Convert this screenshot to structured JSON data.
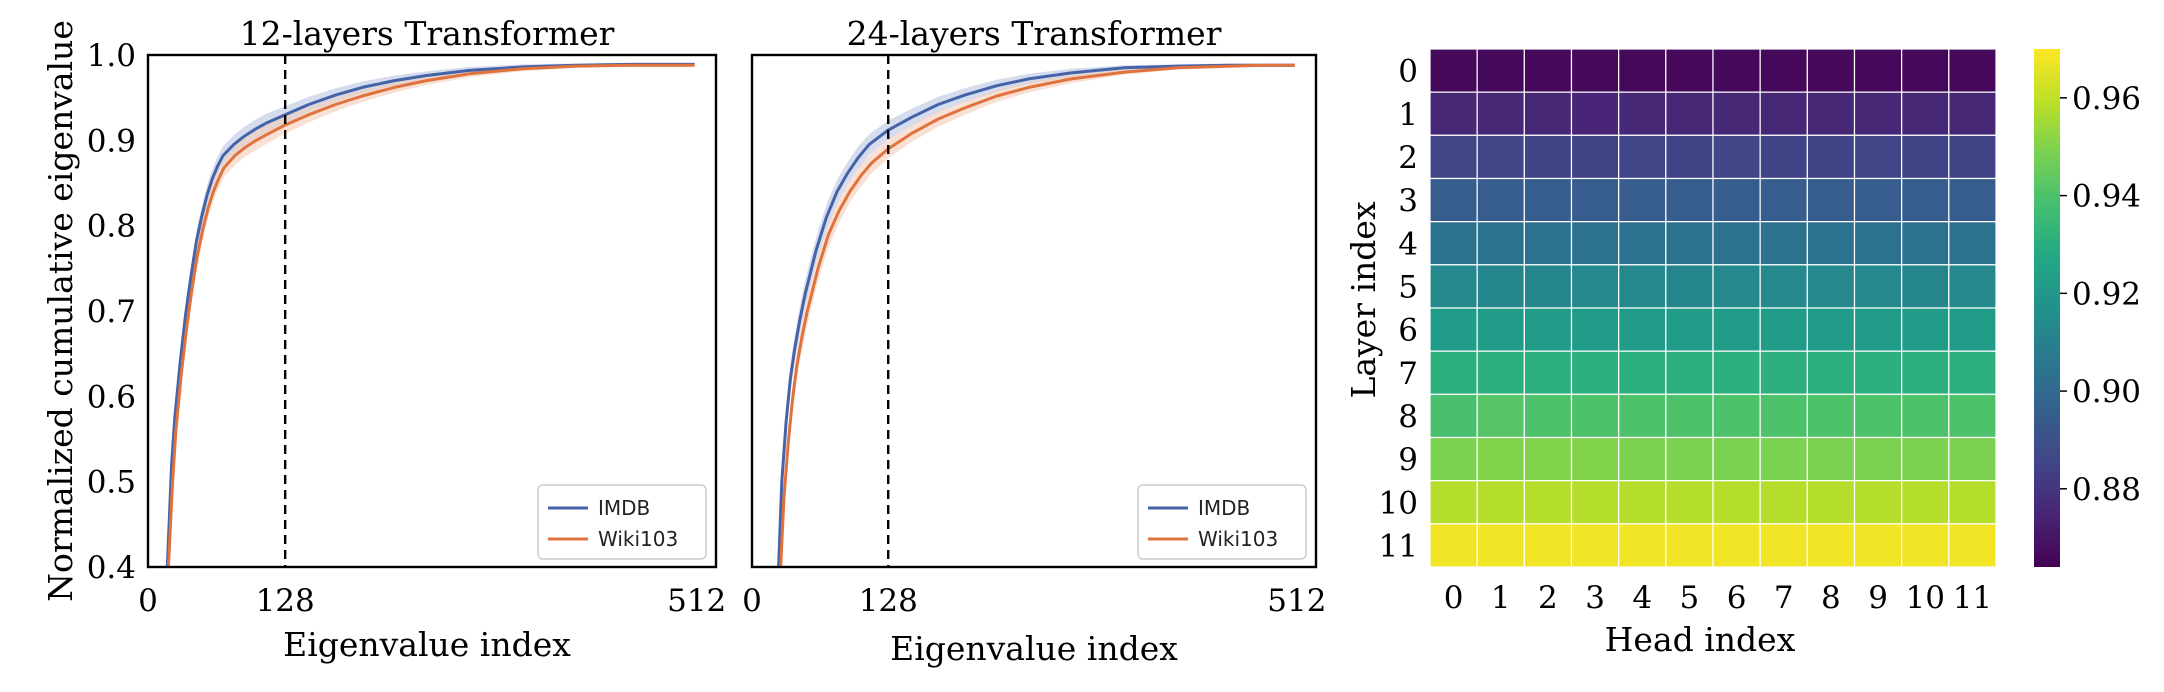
{
  "chart_data": [
    {
      "type": "line",
      "title": "12-layers Transformer",
      "xlabel": "Eigenvalue index",
      "ylabel": "Normalized cumulative eigenvalue",
      "xlim": [
        0,
        530
      ],
      "ylim": [
        0.4,
        1.0
      ],
      "x_ticks": [
        0,
        128,
        512
      ],
      "y_ticks": [
        0.4,
        0.5,
        0.6,
        0.7,
        0.8,
        0.9,
        1.0
      ],
      "x_tick_labels": [
        "0",
        "128",
        "512"
      ],
      "y_tick_labels": [
        "0.4",
        "0.5",
        "0.6",
        "0.7",
        "0.8",
        "0.9",
        "1.0"
      ],
      "vline": 128,
      "vline_style": "dashed",
      "grid": false,
      "legend_position": "lower-right",
      "series": [
        {
          "name": "IMDB",
          "color": "#4463a8",
          "band_color": "#b9c5e1",
          "x": [
            18,
            22,
            25,
            30,
            35,
            40,
            45,
            50,
            55,
            60,
            65,
            70,
            80,
            90,
            100,
            110,
            128,
            150,
            175,
            200,
            230,
            260,
            300,
            350,
            400,
            450,
            480,
            510
          ],
          "y": [
            0.4,
            0.52,
            0.575,
            0.64,
            0.695,
            0.74,
            0.78,
            0.81,
            0.835,
            0.855,
            0.87,
            0.882,
            0.895,
            0.905,
            0.913,
            0.92,
            0.93,
            0.942,
            0.953,
            0.962,
            0.97,
            0.976,
            0.982,
            0.986,
            0.988,
            0.989,
            0.989,
            0.989
          ],
          "band_halfwidth": [
            0.012,
            0.015,
            0.015,
            0.015,
            0.014,
            0.013,
            0.013,
            0.012,
            0.012,
            0.011,
            0.011,
            0.011,
            0.011,
            0.011,
            0.011,
            0.011,
            0.01,
            0.009,
            0.008,
            0.007,
            0.006,
            0.005,
            0.004,
            0.003,
            0.002,
            0.002,
            0.002,
            0.002
          ]
        },
        {
          "name": "Wiki103",
          "color": "#e0723d",
          "band_color": "#f4cdb8",
          "x": [
            19,
            23,
            26,
            31,
            36,
            41,
            46,
            51,
            56,
            61,
            66,
            71,
            81,
            91,
            101,
            111,
            128,
            150,
            175,
            200,
            230,
            260,
            300,
            350,
            400,
            450,
            480,
            510
          ],
          "y": [
            0.4,
            0.5,
            0.56,
            0.625,
            0.68,
            0.725,
            0.765,
            0.795,
            0.82,
            0.84,
            0.855,
            0.868,
            0.882,
            0.892,
            0.9,
            0.907,
            0.918,
            0.93,
            0.942,
            0.952,
            0.962,
            0.97,
            0.978,
            0.984,
            0.987,
            0.988,
            0.988,
            0.988
          ],
          "band_halfwidth": [
            0.012,
            0.015,
            0.015,
            0.015,
            0.014,
            0.013,
            0.013,
            0.012,
            0.012,
            0.011,
            0.011,
            0.011,
            0.011,
            0.011,
            0.011,
            0.011,
            0.01,
            0.009,
            0.008,
            0.007,
            0.006,
            0.005,
            0.004,
            0.003,
            0.002,
            0.002,
            0.002,
            0.002
          ]
        }
      ]
    },
    {
      "type": "line",
      "title": "24-layers Transformer",
      "xlabel": "Eigenvalue index",
      "ylabel": "",
      "xlim": [
        0,
        530
      ],
      "ylim": [
        0.4,
        1.0
      ],
      "x_ticks": [
        0,
        128,
        512
      ],
      "x_tick_labels": [
        "0",
        "128",
        "512"
      ],
      "vline": 128,
      "vline_style": "dashed",
      "grid": false,
      "legend_position": "lower-right",
      "series": [
        {
          "name": "IMDB",
          "color": "#4463a8",
          "band_color": "#b9c5e1",
          "x": [
            25,
            28,
            32,
            36,
            40,
            45,
            50,
            55,
            60,
            70,
            80,
            90,
            100,
            110,
            128,
            150,
            175,
            200,
            230,
            260,
            300,
            350,
            400,
            450,
            480,
            510
          ],
          "y": [
            0.4,
            0.5,
            0.57,
            0.62,
            0.655,
            0.69,
            0.72,
            0.745,
            0.77,
            0.81,
            0.84,
            0.862,
            0.88,
            0.895,
            0.912,
            0.927,
            0.942,
            0.953,
            0.964,
            0.972,
            0.979,
            0.985,
            0.987,
            0.988,
            0.988,
            0.988
          ],
          "band_halfwidth": [
            0.012,
            0.016,
            0.016,
            0.016,
            0.016,
            0.016,
            0.016,
            0.016,
            0.015,
            0.015,
            0.014,
            0.013,
            0.013,
            0.012,
            0.011,
            0.01,
            0.009,
            0.008,
            0.007,
            0.006,
            0.005,
            0.003,
            0.002,
            0.002,
            0.002,
            0.002
          ]
        },
        {
          "name": "Wiki103",
          "color": "#e0723d",
          "band_color": "#f4cdb8",
          "x": [
            27,
            30,
            34,
            38,
            42,
            47,
            52,
            57,
            62,
            72,
            82,
            92,
            102,
            112,
            128,
            150,
            175,
            200,
            230,
            260,
            300,
            350,
            400,
            450,
            480,
            510
          ],
          "y": [
            0.4,
            0.48,
            0.545,
            0.595,
            0.635,
            0.67,
            0.7,
            0.725,
            0.75,
            0.79,
            0.818,
            0.84,
            0.858,
            0.873,
            0.89,
            0.908,
            0.925,
            0.938,
            0.952,
            0.962,
            0.972,
            0.98,
            0.985,
            0.987,
            0.988,
            0.988
          ],
          "band_halfwidth": [
            0.012,
            0.016,
            0.016,
            0.016,
            0.016,
            0.016,
            0.016,
            0.016,
            0.015,
            0.015,
            0.014,
            0.013,
            0.013,
            0.012,
            0.011,
            0.01,
            0.009,
            0.008,
            0.007,
            0.006,
            0.005,
            0.003,
            0.002,
            0.002,
            0.002,
            0.002
          ]
        }
      ]
    },
    {
      "type": "heatmap",
      "title": "",
      "xlabel": "Head index",
      "ylabel": "Layer index",
      "x_tick_labels": [
        "0",
        "1",
        "2",
        "3",
        "4",
        "5",
        "6",
        "7",
        "8",
        "9",
        "10",
        "11"
      ],
      "y_tick_labels": [
        "0",
        "1",
        "2",
        "3",
        "4",
        "5",
        "6",
        "7",
        "8",
        "9",
        "10",
        "11"
      ],
      "colormap": "viridis",
      "vmin": 0.864,
      "vmax": 0.97,
      "colorbar_ticks": [
        0.88,
        0.9,
        0.92,
        0.94,
        0.96
      ],
      "colorbar_tick_labels": [
        "0.88",
        "0.90",
        "0.92",
        "0.94",
        "0.96"
      ],
      "values": [
        [
          0.866,
          0.866,
          0.866,
          0.866,
          0.866,
          0.866,
          0.866,
          0.866,
          0.866,
          0.866,
          0.866,
          0.866
        ],
        [
          0.876,
          0.876,
          0.876,
          0.875,
          0.876,
          0.876,
          0.876,
          0.876,
          0.876,
          0.876,
          0.876,
          0.876
        ],
        [
          0.886,
          0.886,
          0.885,
          0.885,
          0.886,
          0.885,
          0.886,
          0.885,
          0.885,
          0.886,
          0.885,
          0.885
        ],
        [
          0.895,
          0.895,
          0.895,
          0.895,
          0.895,
          0.895,
          0.895,
          0.895,
          0.895,
          0.895,
          0.895,
          0.895
        ],
        [
          0.904,
          0.904,
          0.904,
          0.904,
          0.904,
          0.904,
          0.904,
          0.904,
          0.904,
          0.904,
          0.904,
          0.904
        ],
        [
          0.913,
          0.912,
          0.912,
          0.913,
          0.913,
          0.912,
          0.913,
          0.913,
          0.913,
          0.913,
          0.912,
          0.913
        ],
        [
          0.922,
          0.922,
          0.922,
          0.922,
          0.922,
          0.922,
          0.922,
          0.922,
          0.922,
          0.922,
          0.922,
          0.922
        ],
        [
          0.931,
          0.931,
          0.931,
          0.931,
          0.931,
          0.931,
          0.931,
          0.931,
          0.931,
          0.931,
          0.931,
          0.931
        ],
        [
          0.939,
          0.942,
          0.94,
          0.94,
          0.94,
          0.94,
          0.94,
          0.94,
          0.94,
          0.94,
          0.94,
          0.94
        ],
        [
          0.949,
          0.95,
          0.95,
          0.95,
          0.949,
          0.949,
          0.949,
          0.949,
          0.949,
          0.949,
          0.949,
          0.949
        ],
        [
          0.958,
          0.958,
          0.958,
          0.958,
          0.958,
          0.958,
          0.958,
          0.958,
          0.958,
          0.958,
          0.958,
          0.958
        ],
        [
          0.968,
          0.968,
          0.968,
          0.968,
          0.968,
          0.968,
          0.968,
          0.968,
          0.968,
          0.968,
          0.968,
          0.968
        ]
      ]
    }
  ]
}
